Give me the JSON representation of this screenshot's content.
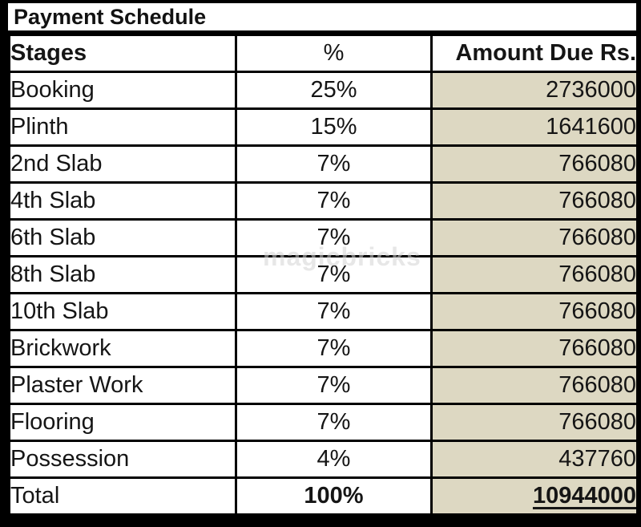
{
  "title": "Payment Schedule",
  "watermark": "magicbricks",
  "colors": {
    "border": "#000000",
    "cell_background": "#ffffff",
    "amount_column_background": "#ddd8c2",
    "text": "#151515",
    "watermark_text": "#d4d4d4"
  },
  "table": {
    "headers": {
      "stage": "Stages",
      "percent": "%",
      "amount": "Amount Due Rs."
    },
    "rows": [
      {
        "stage": "Booking",
        "percent": "25%",
        "amount": "2736000"
      },
      {
        "stage": "Plinth",
        "percent": "15%",
        "amount": "1641600"
      },
      {
        "stage": "2nd Slab",
        "percent": "7%",
        "amount": "766080"
      },
      {
        "stage": "4th Slab",
        "percent": "7%",
        "amount": "766080"
      },
      {
        "stage": "6th Slab",
        "percent": "7%",
        "amount": "766080"
      },
      {
        "stage": "8th Slab",
        "percent": "7%",
        "amount": "766080"
      },
      {
        "stage": "10th Slab",
        "percent": "7%",
        "amount": "766080"
      },
      {
        "stage": "Brickwork",
        "percent": "7%",
        "amount": "766080"
      },
      {
        "stage": "Plaster Work",
        "percent": "7%",
        "amount": "766080"
      },
      {
        "stage": "Flooring",
        "percent": "7%",
        "amount": "766080"
      },
      {
        "stage": "Possession",
        "percent": "4%",
        "amount": "437760"
      },
      {
        "stage": "Total",
        "percent": "100%",
        "amount": "10944000"
      }
    ]
  }
}
